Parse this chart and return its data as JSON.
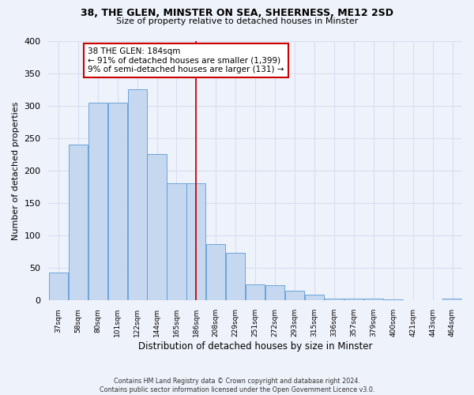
{
  "title1": "38, THE GLEN, MINSTER ON SEA, SHEERNESS, ME12 2SD",
  "title2": "Size of property relative to detached houses in Minster",
  "xlabel": "Distribution of detached houses by size in Minster",
  "ylabel": "Number of detached properties",
  "footnote": "Contains HM Land Registry data © Crown copyright and database right 2024.\nContains public sector information licensed under the Open Government Licence v3.0.",
  "bin_labels": [
    "37sqm",
    "58sqm",
    "80sqm",
    "101sqm",
    "122sqm",
    "144sqm",
    "165sqm",
    "186sqm",
    "208sqm",
    "229sqm",
    "251sqm",
    "272sqm",
    "293sqm",
    "315sqm",
    "336sqm",
    "357sqm",
    "379sqm",
    "400sqm",
    "421sqm",
    "443sqm",
    "464sqm"
  ],
  "bar_heights": [
    43,
    240,
    305,
    305,
    325,
    226,
    180,
    180,
    87,
    74,
    25,
    24,
    15,
    9,
    3,
    3,
    3,
    2,
    0,
    0,
    3
  ],
  "bar_color": "#c5d8f0",
  "bar_edge_color": "#5b9bd5",
  "vline_index": 7,
  "annotation_text": "38 THE GLEN: 184sqm\n← 91% of detached houses are smaller (1,399)\n9% of semi-detached houses are larger (131) →",
  "annotation_box_color": "#ffffff",
  "annotation_box_edge_color": "#cc0000",
  "vline_color": "#cc0000",
  "ylim": [
    0,
    400
  ],
  "yticks": [
    0,
    50,
    100,
    150,
    200,
    250,
    300,
    350,
    400
  ],
  "background_color": "#eef2fa",
  "grid_color": "#d8dff0"
}
